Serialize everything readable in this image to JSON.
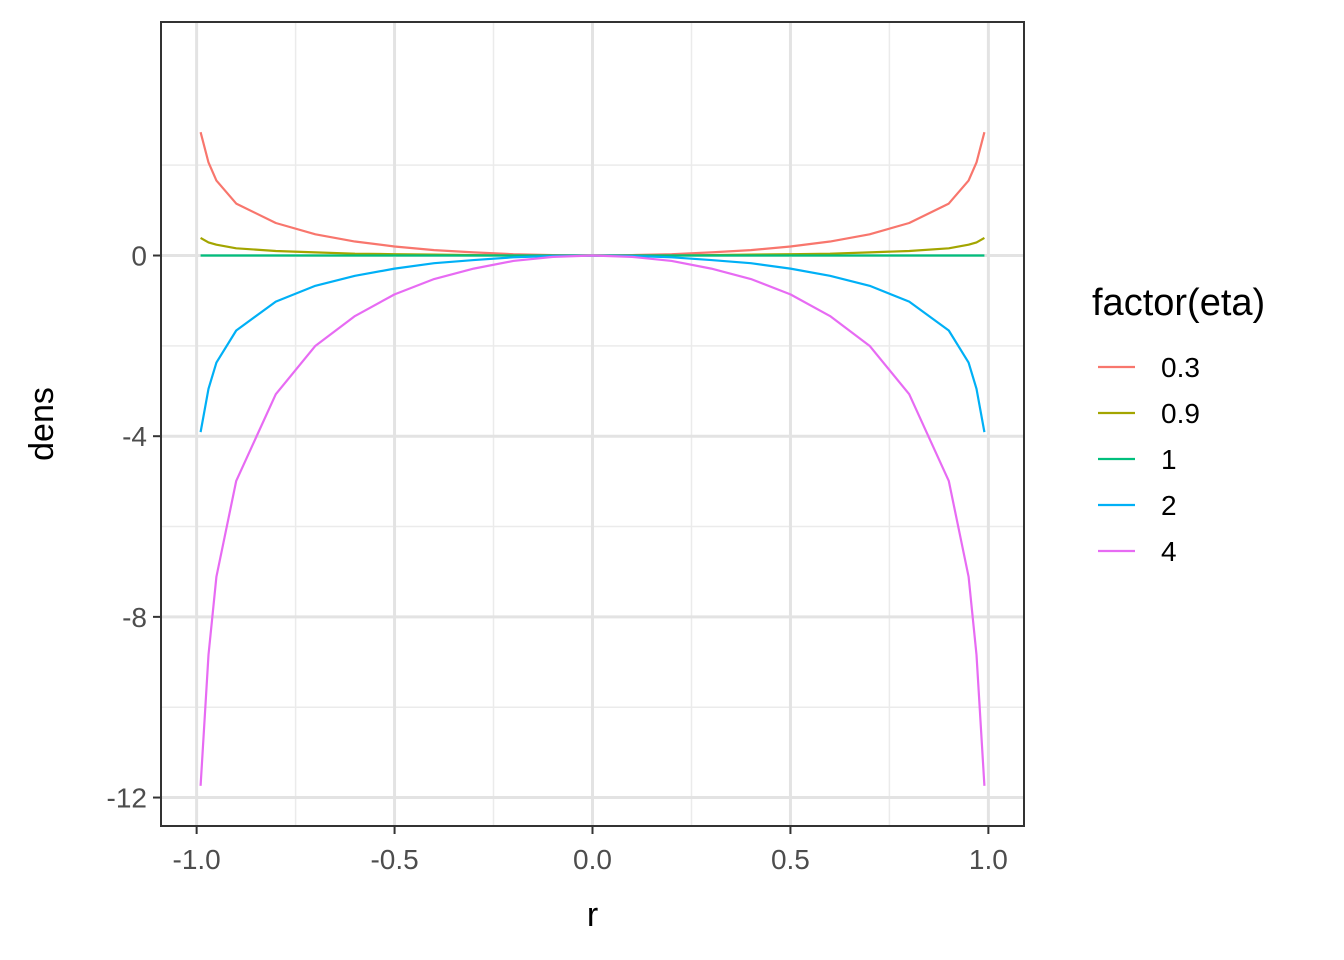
{
  "chart_data": {
    "type": "line",
    "title": "",
    "xlabel": "r",
    "ylabel": "dens",
    "xlim": [
      -1.09,
      1.09
    ],
    "ylim": [
      -12.63,
      5.17
    ],
    "x_ticks": [
      -1.0,
      -0.5,
      0.0,
      0.5,
      1.0
    ],
    "x_tick_labels": [
      "-1.0",
      "-0.5",
      "0.0",
      "0.5",
      "1.0"
    ],
    "y_ticks": [
      0,
      -4,
      -8,
      -12
    ],
    "y_tick_labels": [
      "0",
      "-4",
      "-8",
      "-12"
    ],
    "grid": true,
    "legend": {
      "title": "factor(eta)",
      "position": "right"
    },
    "x_range": [
      -0.99,
      0.99
    ],
    "series": [
      {
        "name": "0.3",
        "color": "#F8766D",
        "points": [
          [
            -0.99,
            2.73
          ],
          [
            -0.97,
            2.06
          ],
          [
            -0.95,
            1.66
          ],
          [
            -0.9,
            1.15
          ],
          [
            -0.8,
            0.72
          ],
          [
            -0.7,
            0.47
          ],
          [
            -0.6,
            0.31
          ],
          [
            -0.5,
            0.2
          ],
          [
            -0.4,
            0.12
          ],
          [
            -0.3,
            0.07
          ],
          [
            -0.2,
            0.03
          ],
          [
            -0.1,
            0.01
          ],
          [
            0.0,
            0.0
          ],
          [
            0.1,
            0.01
          ],
          [
            0.2,
            0.03
          ],
          [
            0.3,
            0.07
          ],
          [
            0.4,
            0.12
          ],
          [
            0.5,
            0.2
          ],
          [
            0.6,
            0.31
          ],
          [
            0.7,
            0.47
          ],
          [
            0.8,
            0.72
          ],
          [
            0.9,
            1.15
          ],
          [
            0.95,
            1.66
          ],
          [
            0.97,
            2.06
          ],
          [
            0.99,
            2.73
          ]
        ]
      },
      {
        "name": "0.9",
        "color": "#A3A500",
        "points": [
          [
            -0.99,
            0.39
          ],
          [
            -0.97,
            0.29
          ],
          [
            -0.95,
            0.24
          ],
          [
            -0.9,
            0.16
          ],
          [
            -0.8,
            0.1
          ],
          [
            -0.7,
            0.07
          ],
          [
            -0.6,
            0.04
          ],
          [
            -0.5,
            0.03
          ],
          [
            -0.4,
            0.02
          ],
          [
            -0.3,
            0.01
          ],
          [
            -0.2,
            0.0
          ],
          [
            -0.1,
            0.0
          ],
          [
            0.0,
            0.0
          ],
          [
            0.1,
            0.0
          ],
          [
            0.2,
            0.0
          ],
          [
            0.3,
            0.01
          ],
          [
            0.4,
            0.02
          ],
          [
            0.5,
            0.03
          ],
          [
            0.6,
            0.04
          ],
          [
            0.7,
            0.07
          ],
          [
            0.8,
            0.1
          ],
          [
            0.9,
            0.16
          ],
          [
            0.95,
            0.24
          ],
          [
            0.97,
            0.29
          ],
          [
            0.99,
            0.39
          ]
        ]
      },
      {
        "name": "1",
        "color": "#00BF7D",
        "points": [
          [
            -0.99,
            0.0
          ],
          [
            0.99,
            0.0
          ]
        ]
      },
      {
        "name": "2",
        "color": "#00B0F6",
        "points": [
          [
            -0.99,
            -3.91
          ],
          [
            -0.97,
            -2.95
          ],
          [
            -0.95,
            -2.37
          ],
          [
            -0.9,
            -1.66
          ],
          [
            -0.8,
            -1.02
          ],
          [
            -0.7,
            -0.67
          ],
          [
            -0.6,
            -0.45
          ],
          [
            -0.5,
            -0.29
          ],
          [
            -0.4,
            -0.17
          ],
          [
            -0.3,
            -0.1
          ],
          [
            -0.2,
            -0.04
          ],
          [
            -0.1,
            -0.01
          ],
          [
            0.0,
            0.0
          ],
          [
            0.1,
            -0.01
          ],
          [
            0.2,
            -0.04
          ],
          [
            0.3,
            -0.1
          ],
          [
            0.4,
            -0.17
          ],
          [
            0.5,
            -0.29
          ],
          [
            0.6,
            -0.45
          ],
          [
            0.7,
            -0.67
          ],
          [
            0.8,
            -1.02
          ],
          [
            0.9,
            -1.66
          ],
          [
            0.95,
            -2.37
          ],
          [
            0.97,
            -2.95
          ],
          [
            0.99,
            -3.91
          ]
        ]
      },
      {
        "name": "4",
        "color": "#E76BF3",
        "points": [
          [
            -0.99,
            -11.74
          ],
          [
            -0.97,
            -8.84
          ],
          [
            -0.95,
            -7.11
          ],
          [
            -0.9,
            -4.99
          ],
          [
            -0.8,
            -3.07
          ],
          [
            -0.7,
            -2.0
          ],
          [
            -0.6,
            -1.34
          ],
          [
            -0.5,
            -0.86
          ],
          [
            -0.4,
            -0.52
          ],
          [
            -0.3,
            -0.29
          ],
          [
            -0.2,
            -0.12
          ],
          [
            -0.1,
            -0.03
          ],
          [
            0.0,
            0.0
          ],
          [
            0.1,
            -0.03
          ],
          [
            0.2,
            -0.12
          ],
          [
            0.3,
            -0.29
          ],
          [
            0.4,
            -0.52
          ],
          [
            0.5,
            -0.86
          ],
          [
            0.6,
            -1.34
          ],
          [
            0.7,
            -2.0
          ],
          [
            0.8,
            -3.07
          ],
          [
            0.9,
            -4.99
          ],
          [
            0.95,
            -7.11
          ],
          [
            0.97,
            -8.84
          ],
          [
            0.99,
            -11.74
          ]
        ]
      }
    ]
  }
}
